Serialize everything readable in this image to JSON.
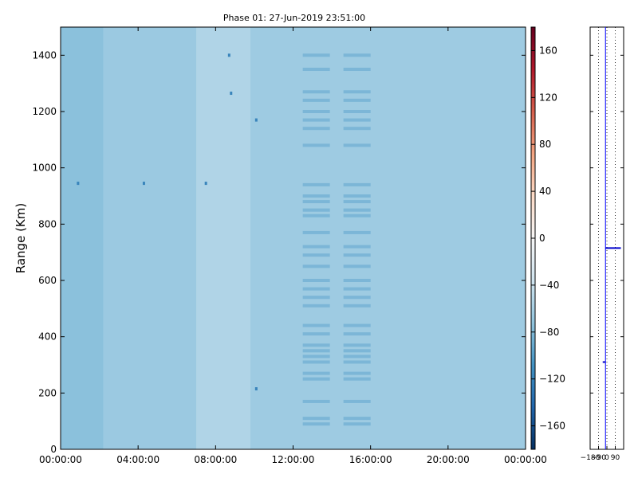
{
  "chart_data": [
    {
      "type": "heatmap",
      "title": "Phase 01: 27-Jun-2019 23:51:00",
      "xlabel": "",
      "ylabel": "Range (Km)",
      "x_ticks": [
        "00:00:00",
        "04:00:00",
        "08:00:00",
        "12:00:00",
        "16:00:00",
        "20:00:00",
        "00:00:00"
      ],
      "x_range_hours": [
        0,
        24
      ],
      "y_ticks": [
        0,
        200,
        400,
        600,
        800,
        1000,
        1200,
        1400
      ],
      "ylim": [
        0,
        1500
      ],
      "colorbar": {
        "ticks": [
          160,
          120,
          80,
          40,
          0,
          -40,
          -80,
          -120,
          -160
        ],
        "range": [
          -180,
          180
        ],
        "colormap": "RdBu_r"
      },
      "typical_value": -65,
      "column_profile": [
        {
          "from_hour": 0.0,
          "to_hour": 2.2,
          "value": -75
        },
        {
          "from_hour": 2.2,
          "to_hour": 7.0,
          "value": -67
        },
        {
          "from_hour": 7.0,
          "to_hour": 9.8,
          "value": -55
        },
        {
          "from_hour": 9.8,
          "to_hour": 24.0,
          "value": -65
        }
      ],
      "stripe_groups": [
        {
          "from_hour": 12.5,
          "to_hour": 13.9
        },
        {
          "from_hour": 14.6,
          "to_hour": 16.0
        }
      ],
      "stripe_ranges_km": [
        90,
        110,
        170,
        250,
        270,
        310,
        330,
        350,
        370,
        410,
        440,
        510,
        540,
        570,
        600,
        650,
        690,
        720,
        770,
        830,
        850,
        880,
        900,
        940,
        1080,
        1140,
        1170,
        1200,
        1240,
        1270,
        1350,
        1400
      ],
      "speckles": [
        {
          "hour": 0.9,
          "range": 945
        },
        {
          "hour": 4.3,
          "range": 945
        },
        {
          "hour": 7.5,
          "range": 945
        },
        {
          "hour": 8.8,
          "range": 1265
        },
        {
          "hour": 10.1,
          "range": 1170
        },
        {
          "hour": 10.1,
          "range": 215
        },
        {
          "hour": 8.7,
          "range": 1400
        }
      ]
    },
    {
      "type": "line",
      "x_ticks": [
        -180,
        -90,
        0,
        90
      ],
      "xlim": [
        -180,
        180
      ],
      "ylim": [
        0,
        1500
      ],
      "grid": true,
      "gridlines_x": [
        -90,
        0,
        90
      ],
      "line_x": -15,
      "segments": [
        {
          "x": [
            -15,
            150
          ],
          "y": [
            715,
            715
          ]
        },
        {
          "x": [
            -45,
            -15
          ],
          "y": [
            310,
            310
          ]
        }
      ]
    }
  ]
}
